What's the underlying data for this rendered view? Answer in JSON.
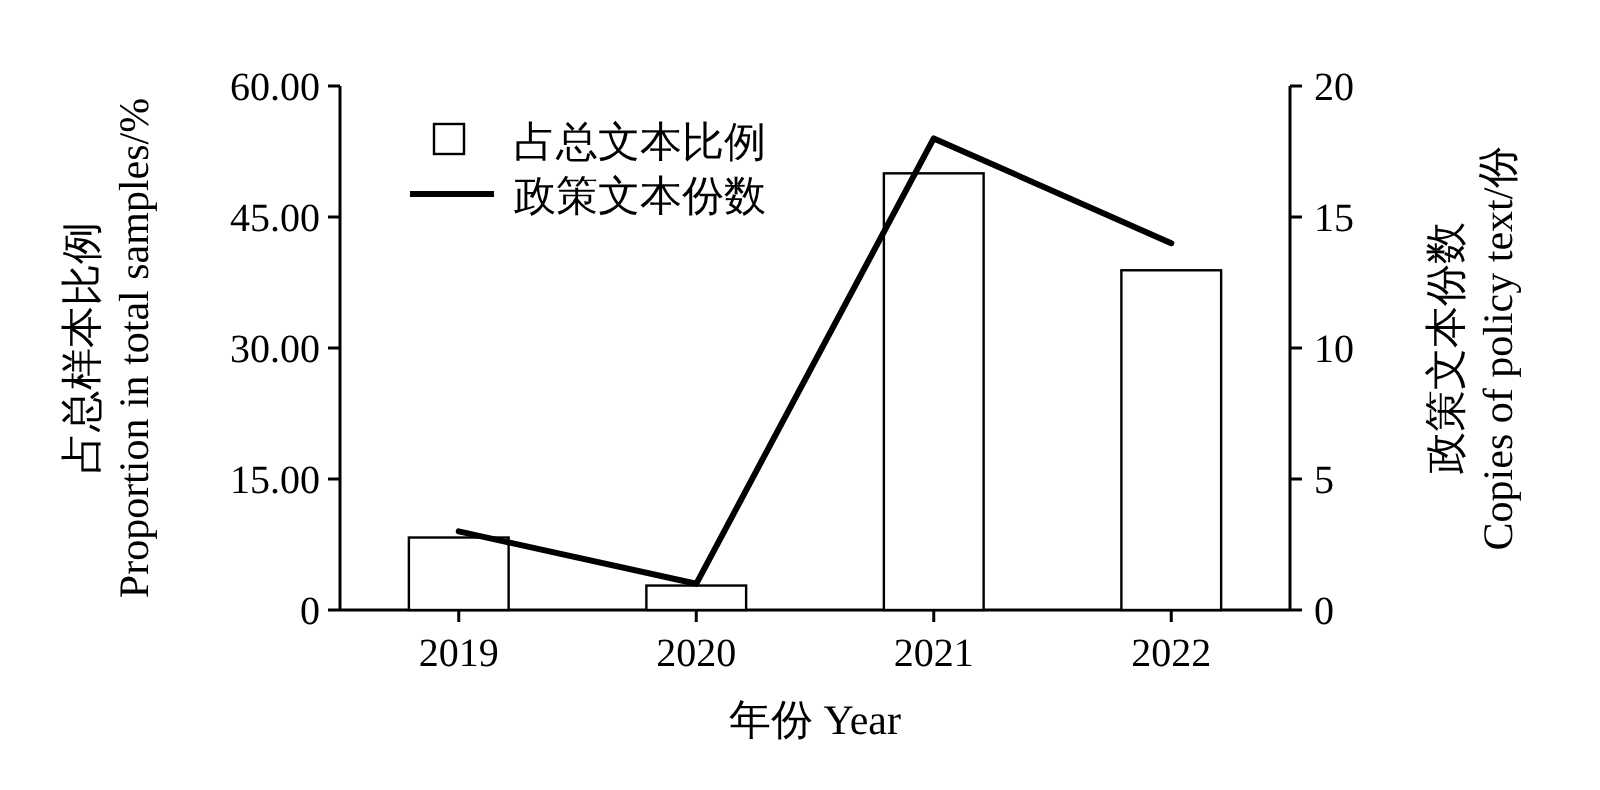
{
  "chart_data": {
    "type": "bar",
    "categories": [
      "2019",
      "2020",
      "2021",
      "2022"
    ],
    "series": [
      {
        "name": "占总文本比例",
        "color": "#ffffff",
        "values": [
          8.3,
          2.8,
          50,
          38.9
        ]
      },
      {
        "name": "政策文本份数",
        "type": "line",
        "color": "#000000",
        "axis": "y2",
        "values": [
          3,
          1,
          18,
          14
        ]
      }
    ],
    "xlabel": "年份 Year",
    "ylabel": "占总样本比例\nProportion in total samples/%",
    "y2label": "政策文本份数\nCopies of policy text/份",
    "ylim": [
      0,
      60
    ],
    "yticks": [
      0,
      {
        "value": 15,
        "label": "15.00"
      },
      {
        "value": 30,
        "label": "30.00"
      },
      {
        "value": 45,
        "label": "45.00"
      },
      {
        "value": 60,
        "label": "60.00"
      }
    ],
    "y2lim": [
      0,
      20
    ],
    "y2ticks": [
      0,
      5,
      10,
      15,
      20
    ],
    "legend": "top left",
    "grid": false
  }
}
